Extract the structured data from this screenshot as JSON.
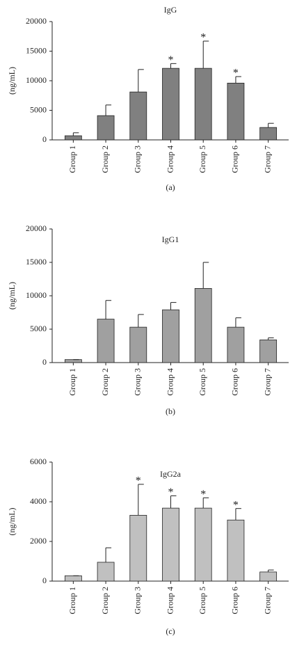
{
  "chart_data": [
    {
      "type": "bar",
      "title": "IgG",
      "ylabel": "(ng/mL)",
      "panel_label": "(a)",
      "color": "#808080",
      "categories": [
        "Group 1",
        "Group 2",
        "Group 3",
        "Group 4",
        "Group 5",
        "Group 6",
        "Group 7"
      ],
      "values": [
        700,
        4100,
        8100,
        12100,
        12100,
        9600,
        2100
      ],
      "errors": [
        500,
        1800,
        3800,
        800,
        4600,
        1100,
        700
      ],
      "ylim": [
        0,
        20000
      ],
      "yticks": [
        0,
        5000,
        10000,
        15000,
        20000
      ],
      "annotations": [
        {
          "text": "*",
          "category": "Group 4"
        },
        {
          "text": "*",
          "category": "Group 5"
        },
        {
          "text": "*",
          "category": "Group 6"
        }
      ]
    },
    {
      "type": "bar",
      "title": "IgG1",
      "ylabel": "(ng/mL)",
      "panel_label": "(b)",
      "color": "#a0a0a0",
      "categories": [
        "Group 1",
        "Group 2",
        "Group 3",
        "Group 4",
        "Group 5",
        "Group 6",
        "Group 7"
      ],
      "values": [
        450,
        6500,
        5300,
        7900,
        11100,
        5300,
        3400
      ],
      "errors": [
        0,
        2800,
        1900,
        1100,
        3900,
        1400,
        300
      ],
      "ylim": [
        0,
        20000
      ],
      "yticks": [
        0,
        5000,
        10000,
        15000,
        20000
      ]
    },
    {
      "type": "bar",
      "title": "IgG2a",
      "ylabel": "(ng/mL)",
      "panel_label": "(c)",
      "color": "#c0c0c0",
      "categories": [
        "Group 1",
        "Group 2",
        "Group 3",
        "Group 4",
        "Group 5",
        "Group 6",
        "Group 7"
      ],
      "values": [
        270,
        950,
        3320,
        3680,
        3680,
        3080,
        460
      ],
      "errors": [
        0,
        730,
        1560,
        620,
        520,
        580,
        100
      ],
      "ylim": [
        0,
        6000
      ],
      "yticks": [
        0,
        2000,
        4000,
        6000
      ],
      "annotations": [
        {
          "text": "*",
          "category": "Group 3"
        },
        {
          "text": "*",
          "category": "Group 4"
        },
        {
          "text": "*",
          "category": "Group 5"
        },
        {
          "text": "*",
          "category": "Group 6"
        }
      ]
    }
  ]
}
